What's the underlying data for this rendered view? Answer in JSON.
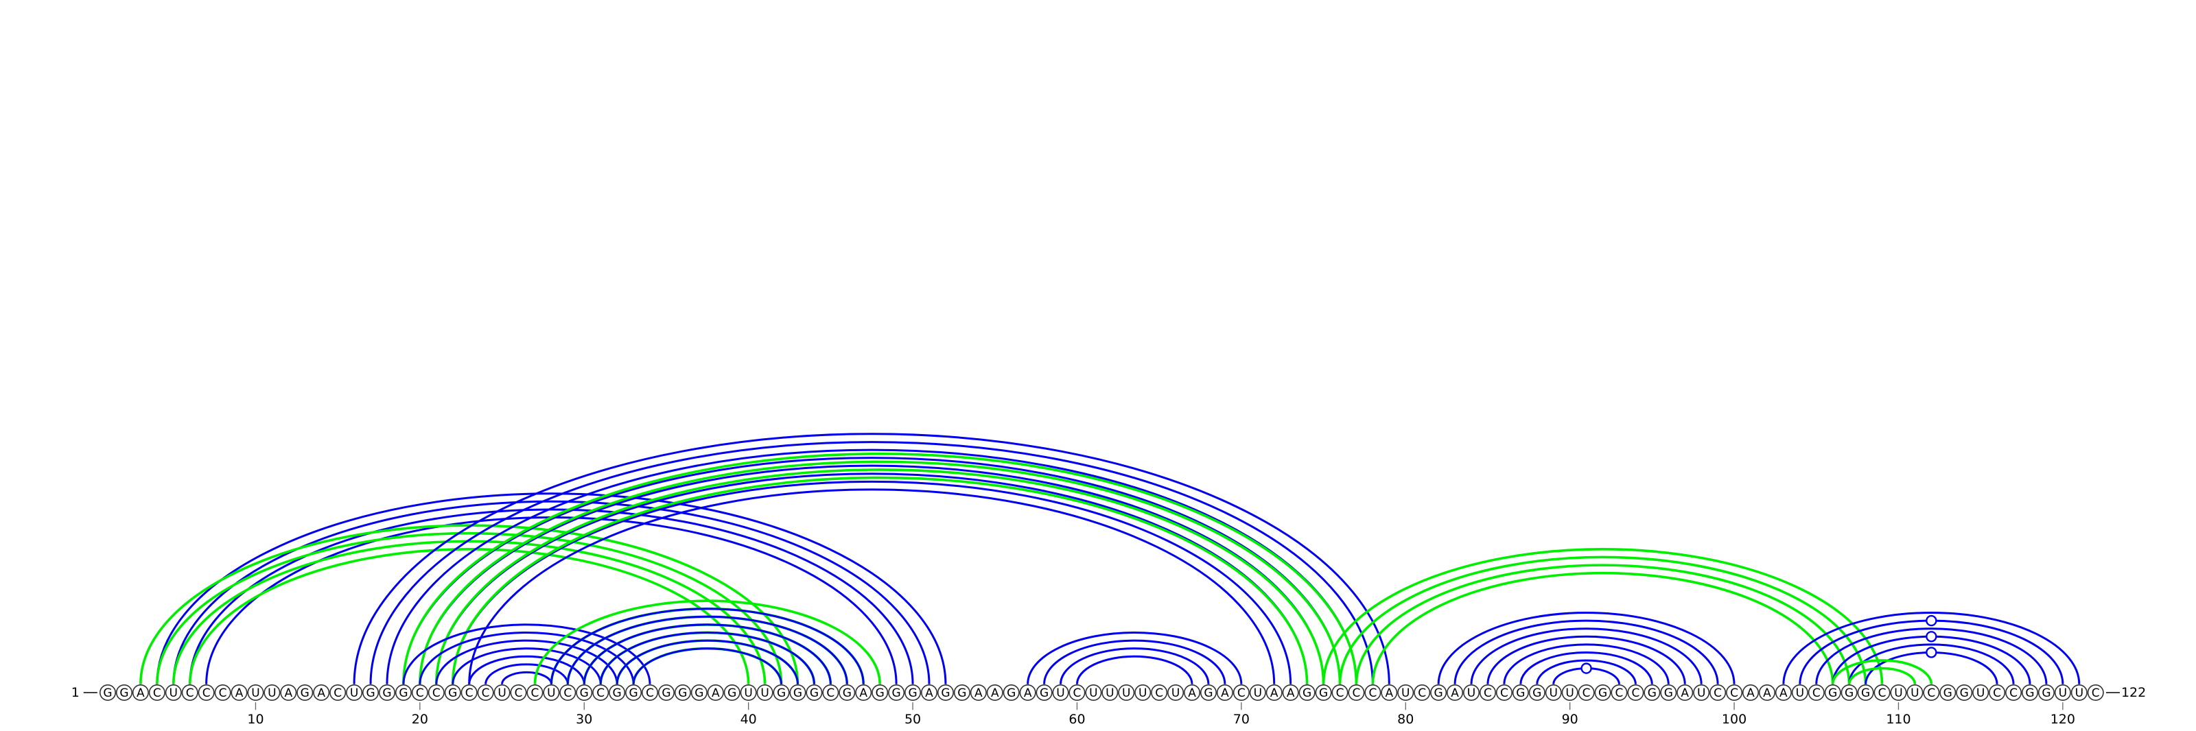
{
  "diagram": {
    "type": "rna-arc-diagram",
    "sequence": "GGACUCCCAUUAGACUGGGCCGCCUCCUCGCGGCGGGAGUUGGGCGAGGGAGGAAGAGUCUUUUCUAGACUAAGGCCCAUCGAUCCGGUUCGCCGGAUCCAAAUCGGGCUUCGGUCCGGUUC",
    "start_label": "1",
    "end_label": "122",
    "ticks": [
      "10",
      "20",
      "30",
      "40",
      "50",
      "60",
      "70",
      "80",
      "90",
      "100",
      "110",
      "120"
    ],
    "colors": {
      "blue": "#0000ee",
      "green": "#00ee00"
    },
    "helices": [
      {
        "color": "blue",
        "i": 4,
        "j": 52,
        "count": 4
      },
      {
        "color": "green",
        "i": 3,
        "j": 43,
        "count": 4
      },
      {
        "color": "blue",
        "i": 16,
        "j": 79,
        "count": 8
      },
      {
        "color": "green",
        "i": 19,
        "j": 77,
        "count": 4
      },
      {
        "color": "blue",
        "i": 19,
        "j": 34,
        "count": 7
      },
      {
        "color": "green",
        "i": 27,
        "j": 48,
        "count": 3
      },
      {
        "color": "green",
        "i": 30,
        "j": 45,
        "count": 4
      },
      {
        "color": "blue",
        "i": 28,
        "j": 47,
        "count": 6
      },
      {
        "color": "blue",
        "i": 57,
        "j": 70,
        "count": 4
      },
      {
        "color": "green",
        "i": 75,
        "j": 109,
        "count": 4
      },
      {
        "color": "blue",
        "i": 82,
        "j": 100,
        "count": 8
      },
      {
        "color": "blue",
        "i": 103,
        "j": 121,
        "count": 6
      },
      {
        "color": "green",
        "i": 106,
        "j": 112,
        "count": 2
      }
    ],
    "markers": [
      {
        "color": "blue",
        "position": 91,
        "arc": 1
      },
      {
        "color": "blue",
        "position": 111,
        "arc": 1
      },
      {
        "color": "blue",
        "position": 111,
        "arc": 3
      },
      {
        "color": "blue",
        "position": 111,
        "arc": 5
      }
    ]
  }
}
